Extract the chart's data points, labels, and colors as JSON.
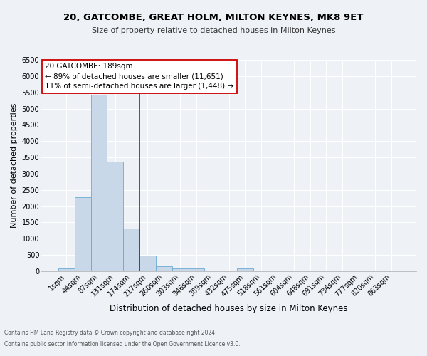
{
  "title1": "20, GATCOMBE, GREAT HOLM, MILTON KEYNES, MK8 9ET",
  "title2": "Size of property relative to detached houses in Milton Keynes",
  "xlabel": "Distribution of detached houses by size in Milton Keynes",
  "ylabel": "Number of detached properties",
  "footnote1": "Contains HM Land Registry data © Crown copyright and database right 2024.",
  "footnote2": "Contains public sector information licensed under the Open Government Licence v3.0.",
  "annotation_title": "20 GATCOMBE: 189sqm",
  "annotation_line1": "← 89% of detached houses are smaller (11,651)",
  "annotation_line2": "11% of semi-detached houses are larger (1,448) →",
  "bar_labels": [
    "1sqm",
    "44sqm",
    "87sqm",
    "131sqm",
    "174sqm",
    "217sqm",
    "260sqm",
    "303sqm",
    "346sqm",
    "389sqm",
    "432sqm",
    "475sqm",
    "518sqm",
    "561sqm",
    "604sqm",
    "648sqm",
    "691sqm",
    "734sqm",
    "777sqm",
    "820sqm",
    "863sqm"
  ],
  "bar_values": [
    80,
    2270,
    5430,
    3380,
    1310,
    470,
    160,
    80,
    80,
    0,
    0,
    80,
    0,
    0,
    0,
    0,
    0,
    0,
    0,
    0,
    0
  ],
  "bar_color": "#c8d8e8",
  "bar_edgecolor": "#6aaad4",
  "vline_x": 4.5,
  "vline_color": "#8b1a1a",
  "annotation_box_color": "#ffffff",
  "annotation_box_edgecolor": "#cc0000",
  "ylim": [
    0,
    6500
  ],
  "yticks": [
    0,
    500,
    1000,
    1500,
    2000,
    2500,
    3000,
    3500,
    4000,
    4500,
    5000,
    5500,
    6000,
    6500
  ],
  "background_color": "#eef2f7",
  "grid_color": "#ffffff",
  "title1_fontsize": 9.5,
  "title2_fontsize": 8.0,
  "xlabel_fontsize": 8.5,
  "ylabel_fontsize": 8.0,
  "tick_fontsize": 7.0,
  "footnote_fontsize": 5.5,
  "annotation_fontsize": 7.5
}
